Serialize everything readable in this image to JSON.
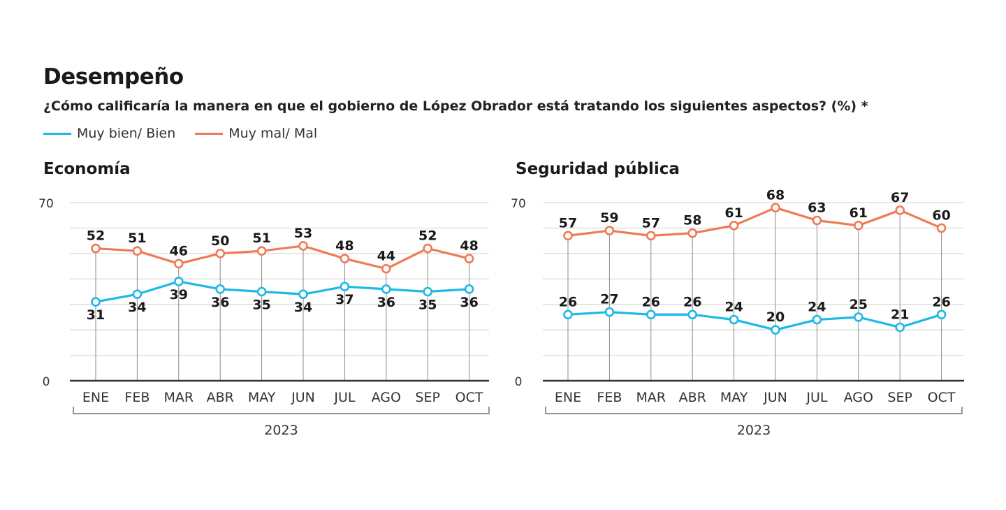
{
  "header": {
    "title": "Desempeño",
    "subtitle": "¿Cómo calificaría la manera en que el gobierno de López Obrador está tratando los siguientes aspectos?  (%) *"
  },
  "legend": [
    {
      "label": "Muy bien/ Bien",
      "color": "#1fb8e6"
    },
    {
      "label": "Muy mal/ Mal",
      "color": "#ef7a56"
    }
  ],
  "chart_data": [
    {
      "type": "line",
      "title": "Economía",
      "categories": [
        "ENE",
        "FEB",
        "MAR",
        "ABR",
        "MAY",
        "JUN",
        "JUL",
        "AGO",
        "SEP",
        "OCT"
      ],
      "xgroup_label": "2023",
      "ylim": [
        0,
        70
      ],
      "ytick_labels": [
        "0",
        "70"
      ],
      "grid": true,
      "series": [
        {
          "name": "Muy bien/ Bien",
          "color": "#1fb8e6",
          "values": [
            31,
            34,
            39,
            36,
            35,
            34,
            37,
            36,
            35,
            36
          ]
        },
        {
          "name": "Muy mal/ Mal",
          "color": "#ef7a56",
          "values": [
            52,
            51,
            46,
            50,
            51,
            53,
            48,
            44,
            52,
            48
          ]
        }
      ]
    },
    {
      "type": "line",
      "title": "Seguridad pública",
      "categories": [
        "ENE",
        "FEB",
        "MAR",
        "ABR",
        "MAY",
        "JUN",
        "JUL",
        "AGO",
        "SEP",
        "OCT"
      ],
      "xgroup_label": "2023",
      "ylim": [
        0,
        70
      ],
      "ytick_labels": [
        "0",
        "70"
      ],
      "grid": true,
      "series": [
        {
          "name": "Muy bien/ Bien",
          "color": "#1fb8e6",
          "values": [
            26,
            27,
            26,
            26,
            24,
            20,
            24,
            25,
            21,
            26
          ]
        },
        {
          "name": "Muy mal/ Mal",
          "color": "#ef7a56",
          "values": [
            57,
            59,
            57,
            58,
            61,
            68,
            63,
            61,
            67,
            60
          ]
        }
      ]
    }
  ]
}
